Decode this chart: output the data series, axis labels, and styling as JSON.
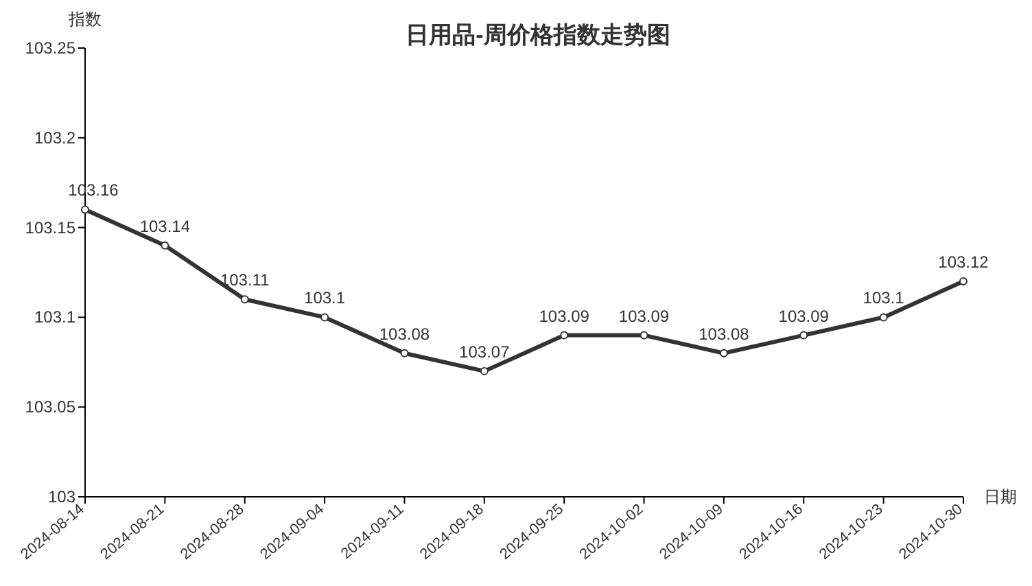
{
  "chart_data": {
    "type": "line",
    "title": "日用品-周价格指数走势图",
    "xlabel": "日期",
    "ylabel": "指数",
    "categories": [
      "2024-08-14",
      "2024-08-21",
      "2024-08-28",
      "2024-09-04",
      "2024-09-11",
      "2024-09-18",
      "2024-09-25",
      "2024-10-02",
      "2024-10-09",
      "2024-10-16",
      "2024-10-23",
      "2024-10-30"
    ],
    "series": [
      {
        "color": "#333333",
        "values": [
          103.16,
          103.14,
          103.11,
          103.1,
          103.08,
          103.07,
          103.09,
          103.09,
          103.08,
          103.09,
          103.1,
          103.12
        ]
      }
    ],
    "ylim": [
      103,
      103.25
    ],
    "yticks": [
      103,
      103.05,
      103.1,
      103.15,
      103.2,
      103.25
    ],
    "data_labels": true,
    "marker": "circle"
  }
}
